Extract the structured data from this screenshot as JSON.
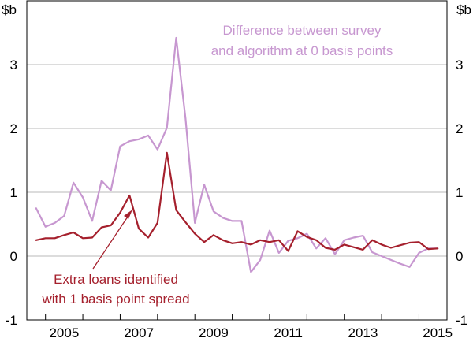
{
  "chart_data": {
    "type": "line",
    "unit_left": "$b",
    "unit_right": "$b",
    "y_ticks": [
      -1,
      0,
      1,
      2,
      3
    ],
    "ylim": [
      -1,
      4
    ],
    "x_ticks": [
      2005,
      2007,
      2009,
      2011,
      2013,
      2015
    ],
    "xlim": [
      2004.5,
      2015.75
    ],
    "grid": "horizontal",
    "legend": "none",
    "colors": {
      "series_difference": "#c797d0",
      "series_extra_loans": "#a5202d",
      "grid": "#b8b8b8",
      "axis": "#000000"
    },
    "series": [
      {
        "key": "difference",
        "x": [
          2004.75,
          2005.0,
          2005.25,
          2005.5,
          2005.75,
          2006.0,
          2006.25,
          2006.5,
          2006.75,
          2007.0,
          2007.25,
          2007.5,
          2007.75,
          2008.0,
          2008.25,
          2008.5,
          2008.75,
          2009.0,
          2009.25,
          2009.5,
          2009.75,
          2010.0,
          2010.25,
          2010.5,
          2010.75,
          2011.0,
          2011.25,
          2011.5,
          2011.75,
          2012.0,
          2012.25,
          2012.5,
          2012.75,
          2013.0,
          2013.25,
          2013.5,
          2013.75,
          2014.0,
          2014.25,
          2014.5,
          2014.75,
          2015.0,
          2015.25,
          2015.5
        ],
        "values": [
          0.75,
          0.46,
          0.52,
          0.63,
          1.15,
          0.92,
          0.55,
          1.18,
          1.03,
          1.72,
          1.8,
          1.83,
          1.89,
          1.67,
          2.01,
          3.42,
          2.15,
          0.52,
          1.12,
          0.7,
          0.6,
          0.55,
          0.55,
          -0.25,
          -0.06,
          0.4,
          0.05,
          0.24,
          0.28,
          0.35,
          0.12,
          0.28,
          0.03,
          0.25,
          0.29,
          0.32,
          0.06,
          0.0,
          -0.06,
          -0.12,
          -0.17,
          0.05,
          0.12,
          0.12
        ]
      },
      {
        "key": "extra_loans",
        "x": [
          2004.75,
          2005.0,
          2005.25,
          2005.5,
          2005.75,
          2006.0,
          2006.25,
          2006.5,
          2006.75,
          2007.0,
          2007.25,
          2007.5,
          2007.75,
          2008.0,
          2008.25,
          2008.5,
          2008.75,
          2009.0,
          2009.25,
          2009.5,
          2009.75,
          2010.0,
          2010.25,
          2010.5,
          2010.75,
          2011.0,
          2011.25,
          2011.5,
          2011.75,
          2012.0,
          2012.25,
          2012.5,
          2012.75,
          2013.0,
          2013.25,
          2013.5,
          2013.75,
          2014.0,
          2014.25,
          2014.5,
          2014.75,
          2015.0,
          2015.25,
          2015.5
        ],
        "values": [
          0.25,
          0.28,
          0.28,
          0.33,
          0.37,
          0.28,
          0.29,
          0.45,
          0.48,
          0.68,
          0.95,
          0.43,
          0.29,
          0.52,
          1.62,
          0.72,
          0.53,
          0.35,
          0.22,
          0.33,
          0.25,
          0.2,
          0.22,
          0.18,
          0.25,
          0.22,
          0.25,
          0.08,
          0.39,
          0.3,
          0.25,
          0.13,
          0.1,
          0.18,
          0.14,
          0.1,
          0.25,
          0.18,
          0.13,
          0.17,
          0.21,
          0.22,
          0.11,
          0.12
        ]
      }
    ],
    "annotations": {
      "difference_line1": "Difference between survey",
      "difference_line2": "and algorithm at 0 basis points",
      "extra_line1": "Extra loans identified",
      "extra_line2": "with 1 basis point spread"
    }
  }
}
